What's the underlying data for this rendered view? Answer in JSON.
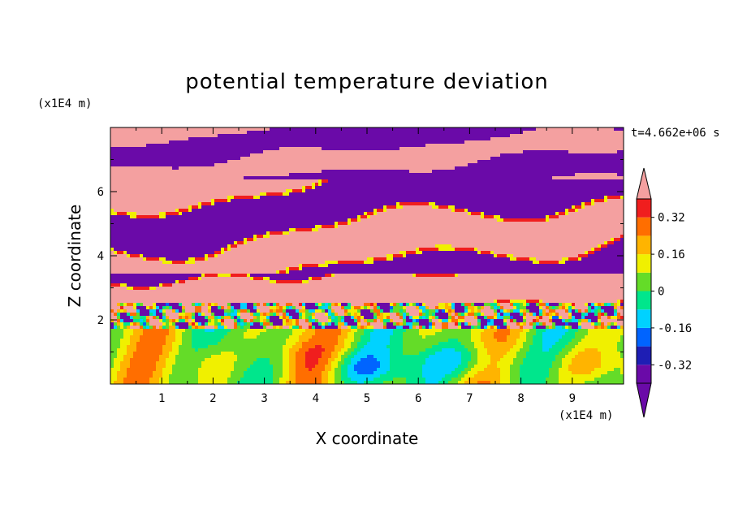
{
  "chart_data": {
    "type": "heatmap",
    "title": "potential temperature deviation",
    "xlabel": "X coordinate",
    "ylabel": "Z coordinate",
    "x_unit": "(x1E4 m)",
    "y_unit": "(x1E4 m)",
    "time_label": "t=4.662e+06 s",
    "xlim": [
      0,
      10
    ],
    "ylim": [
      0,
      8
    ],
    "x_ticks": [
      "1",
      "2",
      "3",
      "4",
      "5",
      "6",
      "7",
      "8",
      "9"
    ],
    "y_ticks": [
      "2",
      "4",
      "6"
    ],
    "colorbar": {
      "levels": [
        -0.4,
        -0.32,
        -0.24,
        -0.16,
        -0.08,
        0,
        0.08,
        0.16,
        0.24,
        0.32,
        0.4
      ],
      "labels": [
        "-0.32",
        "-0.16",
        "0",
        "0.16",
        "0.32"
      ],
      "label_values": [
        -0.32,
        -0.16,
        0,
        0.16,
        0.32
      ],
      "colors": [
        "#6a0aa8",
        "#1e1eb4",
        "#0064ff",
        "#00d2ff",
        "#00e68c",
        "#64dc28",
        "#f0f000",
        "#ffb400",
        "#ff6e00",
        "#f01e1e",
        "#f4a0a0"
      ],
      "extend": "both"
    },
    "field": {
      "description_levels": "values are level indices 0 (purple, below -0.32) to 10 (pink, above 0.32)",
      "layers": [
        {
          "z": [
            6.4,
            8.0
          ],
          "pattern": "purple/pink bands"
        },
        {
          "z": [
            2.5,
            6.4
          ],
          "pattern": "pink lenses within purple"
        },
        {
          "z": [
            1.7,
            2.5
          ],
          "pattern": "mixed turbulent layer"
        },
        {
          "z": [
            0.0,
            1.7
          ],
          "pattern": "green/cyan/yellow convective cells"
        }
      ]
    }
  }
}
